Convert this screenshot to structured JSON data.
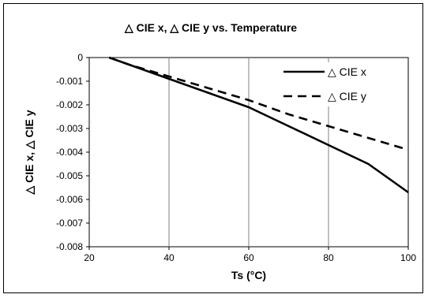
{
  "chart_data": {
    "type": "line",
    "title": "△ CIE x,  △ CIE y vs. Temperature",
    "xlabel": "Ts (°C)",
    "ylabel": "△ CIE x,  △ CIE y",
    "xlim": [
      20,
      100
    ],
    "ylim": [
      -0.008,
      0
    ],
    "x_ticks": [
      "20",
      "40",
      "60",
      "80",
      "100"
    ],
    "y_ticks": [
      "0",
      "-0.001",
      "-0.002",
      "-0.003",
      "-0.004",
      "-0.005",
      "-0.006",
      "-0.007",
      "-0.008"
    ],
    "grid": "vertical",
    "legend_position": "top-right",
    "series": [
      {
        "name": "△ CIE x",
        "style": "solid",
        "color": "#000000",
        "x": [
          25,
          30,
          40,
          50,
          60,
          70,
          80,
          90,
          95,
          100
        ],
        "y": [
          0,
          -0.0003,
          -0.0009,
          -0.0015,
          -0.0021,
          -0.0029,
          -0.0037,
          -0.0045,
          -0.0051,
          -0.0057
        ]
      },
      {
        "name": "△ CIE y",
        "style": "dashed",
        "color": "#000000",
        "x": [
          25,
          30,
          40,
          50,
          60,
          70,
          80,
          90,
          100
        ],
        "y": [
          0,
          -0.0003,
          -0.0008,
          -0.0013,
          -0.0018,
          -0.0024,
          -0.0029,
          -0.0034,
          -0.0039
        ]
      }
    ]
  }
}
